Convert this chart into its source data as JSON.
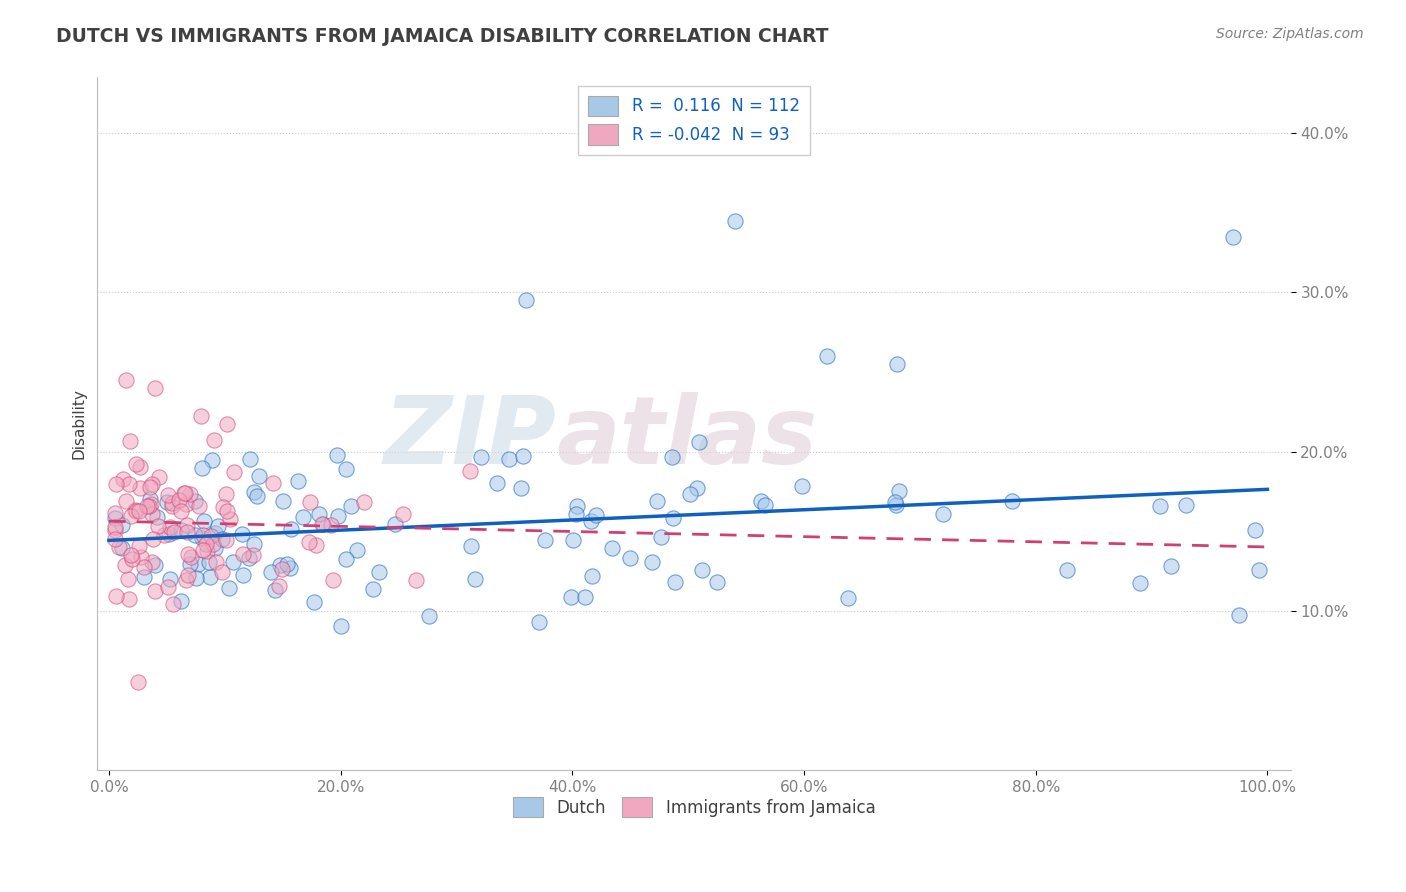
{
  "title": "DUTCH VS IMMIGRANTS FROM JAMAICA DISABILITY CORRELATION CHART",
  "source": "Source: ZipAtlas.com",
  "ylabel": "Disability",
  "watermark": "ZIPatlas",
  "legend_r_dutch": " 0.116",
  "legend_n_dutch": "112",
  "legend_r_jamaica": "-0.042",
  "legend_n_jamaica": "93",
  "color_dutch": "#a8c8e8",
  "color_jamaica": "#f0a8c0",
  "line_color_dutch": "#1060c0",
  "line_color_jamaica": "#d04070",
  "background_color": "#ffffff",
  "title_color": "#404040",
  "source_color": "#808080",
  "ylabel_color": "#404040",
  "tick_color": "#808080",
  "grid_color": "#cccccc",
  "watermark_color": "#d0dde8",
  "watermark_color2": "#e0d0d8"
}
